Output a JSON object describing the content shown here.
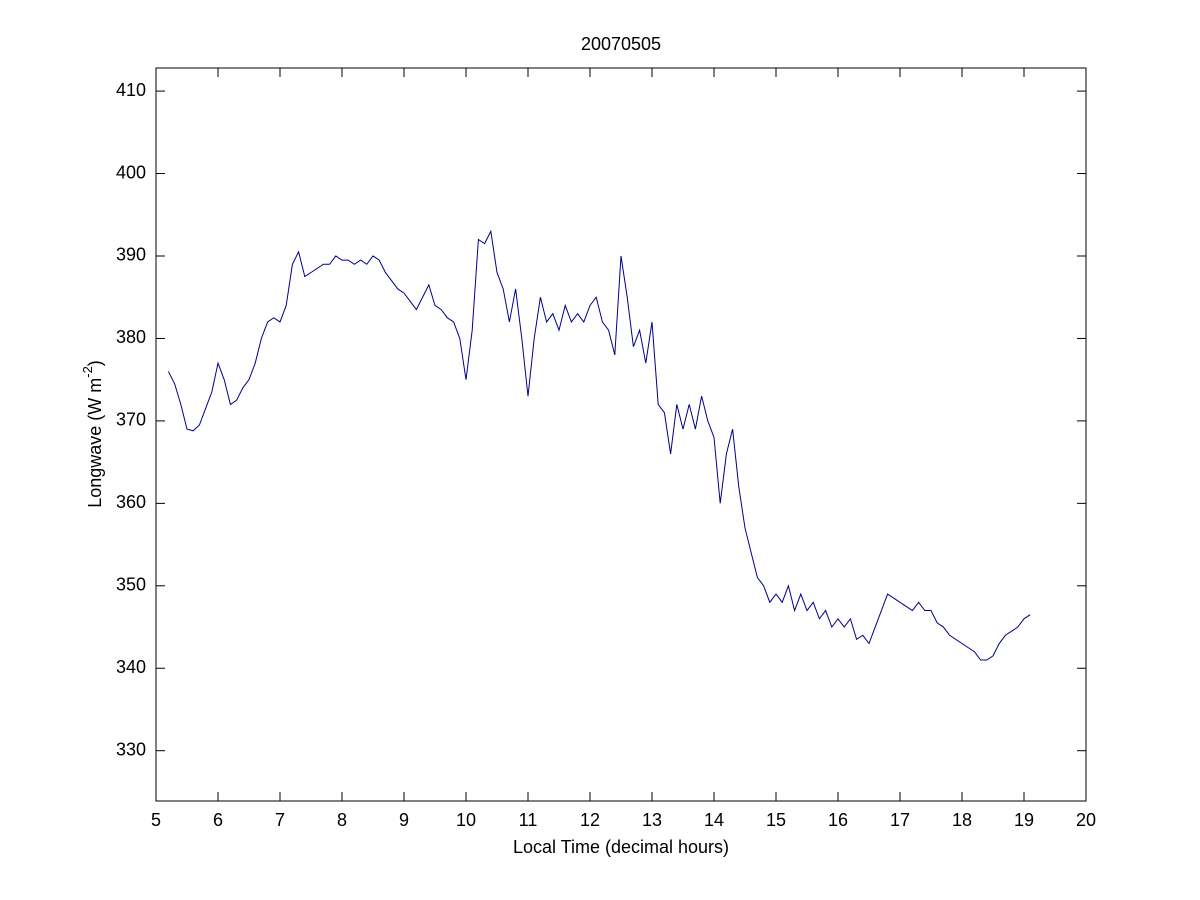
{
  "chart_data": {
    "type": "line",
    "title": "20070505",
    "x_label": "Local Time (decimal hours)",
    "y_label": [
      "Longwave (W m",
      "-2",
      ")"
    ],
    "xlim": [
      5,
      20
    ],
    "xticks": [
      5,
      6,
      7,
      8,
      9,
      10,
      11,
      12,
      13,
      14,
      15,
      16,
      17,
      18,
      19,
      20
    ],
    "ylim": [
      323.9,
      412.8
    ],
    "yticks": [
      330,
      340,
      350,
      360,
      370,
      380,
      390,
      400,
      410
    ],
    "grid": false,
    "series": [
      {
        "color": "#00008b",
        "x": [
          5.2,
          5.3,
          5.4,
          5.5,
          5.6,
          5.7,
          5.8,
          5.9,
          6.0,
          6.1,
          6.2,
          6.3,
          6.4,
          6.5,
          6.6,
          6.7,
          6.8,
          6.9,
          7.0,
          7.1,
          7.2,
          7.3,
          7.4,
          7.5,
          7.6,
          7.7,
          7.8,
          7.9,
          8.0,
          8.1,
          8.2,
          8.3,
          8.4,
          8.5,
          8.6,
          8.7,
          8.8,
          8.9,
          9.0,
          9.1,
          9.2,
          9.3,
          9.4,
          9.5,
          9.6,
          9.7,
          9.8,
          9.9,
          10.0,
          10.1,
          10.2,
          10.3,
          10.4,
          10.5,
          10.6,
          10.7,
          10.8,
          10.9,
          11.0,
          11.1,
          11.2,
          11.3,
          11.4,
          11.5,
          11.6,
          11.7,
          11.8,
          11.9,
          12.0,
          12.1,
          12.2,
          12.3,
          12.4,
          12.5,
          12.6,
          12.7,
          12.8,
          12.9,
          13.0,
          13.1,
          13.2,
          13.3,
          13.4,
          13.5,
          13.6,
          13.7,
          13.8,
          13.9,
          14.0,
          14.1,
          14.2,
          14.3,
          14.4,
          14.5,
          14.6,
          14.7,
          14.8,
          14.9,
          15.0,
          15.1,
          15.2,
          15.3,
          15.4,
          15.5,
          15.6,
          15.7,
          15.8,
          15.9,
          16.0,
          16.1,
          16.2,
          16.3,
          16.4,
          16.5,
          16.6,
          16.7,
          16.8,
          16.9,
          17.0,
          17.1,
          17.2,
          17.3,
          17.4,
          17.5,
          17.6,
          17.7,
          17.8,
          17.9,
          18.0,
          18.1,
          18.2,
          18.3,
          18.4,
          18.5,
          18.6,
          18.7,
          18.8,
          18.9,
          19.0,
          19.1
        ],
        "values": [
          376,
          374.5,
          372,
          369,
          368.8,
          369.5,
          371.5,
          373.5,
          377,
          375,
          372,
          372.5,
          374,
          375,
          377,
          380,
          382,
          382.5,
          382,
          384,
          389,
          390.5,
          387.5,
          388,
          388.5,
          389,
          389,
          390,
          389.5,
          389.5,
          389,
          389.5,
          389,
          390,
          389.5,
          388,
          387,
          386,
          385.5,
          384.5,
          383.5,
          385,
          386.5,
          384,
          383.5,
          382.5,
          382,
          380,
          375,
          381,
          392,
          391.5,
          393,
          388,
          386,
          382,
          386,
          380,
          373,
          380,
          385,
          382,
          383,
          381,
          384,
          382,
          383,
          382,
          384,
          385,
          382,
          381,
          378,
          390,
          385,
          379,
          381,
          377,
          382,
          372,
          371,
          366,
          372,
          369,
          372,
          369,
          373,
          370,
          368,
          360,
          366,
          369,
          362,
          357,
          354,
          351,
          350,
          348,
          349,
          348,
          350,
          347,
          349,
          347,
          348,
          346,
          347,
          345,
          346,
          345,
          346,
          343.5,
          344,
          343,
          345,
          347,
          349,
          348.5,
          348,
          347.5,
          347,
          348,
          347,
          347,
          345.5,
          345,
          344,
          343.5,
          343,
          342.5,
          342,
          341,
          341,
          341.5,
          343,
          344,
          344.5,
          345,
          346,
          346.5
        ]
      }
    ]
  }
}
